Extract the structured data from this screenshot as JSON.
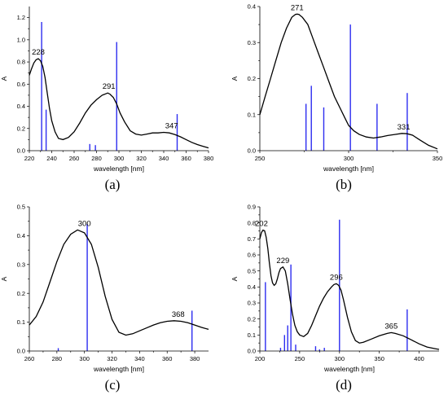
{
  "chart_data": [
    {
      "type": "line",
      "panel_label": "(a)",
      "xlabel": "wavelength [nm]",
      "ylabel": "A",
      "xlim": [
        220,
        380
      ],
      "ylim": [
        0,
        1.3
      ],
      "xticks": [
        220,
        240,
        260,
        280,
        300,
        320,
        340,
        360,
        380
      ],
      "yticks": [
        0.0,
        0.2,
        0.4,
        0.6,
        0.8,
        1.0,
        1.2
      ],
      "curve": {
        "x": [
          220,
          222,
          224,
          226,
          228,
          230,
          232,
          234,
          236,
          238,
          240,
          243,
          246,
          250,
          255,
          260,
          265,
          270,
          275,
          280,
          285,
          290,
          292,
          295,
          298,
          301,
          305,
          310,
          315,
          320,
          325,
          330,
          335,
          340,
          345,
          350,
          355,
          360,
          365,
          370,
          375,
          380
        ],
        "y": [
          0.68,
          0.74,
          0.79,
          0.82,
          0.83,
          0.81,
          0.76,
          0.66,
          0.52,
          0.38,
          0.27,
          0.17,
          0.11,
          0.1,
          0.12,
          0.17,
          0.25,
          0.34,
          0.41,
          0.46,
          0.5,
          0.52,
          0.51,
          0.48,
          0.42,
          0.34,
          0.26,
          0.18,
          0.15,
          0.14,
          0.15,
          0.16,
          0.16,
          0.165,
          0.16,
          0.145,
          0.125,
          0.1,
          0.075,
          0.055,
          0.04,
          0.025
        ]
      },
      "sticks": {
        "x": [
          231,
          235,
          274,
          279,
          298,
          352
        ],
        "y": [
          1.16,
          0.37,
          0.06,
          0.05,
          0.98,
          0.33
        ]
      },
      "peak_labels": [
        {
          "x": 228,
          "y": 0.83,
          "text": "228"
        },
        {
          "x": 291,
          "y": 0.52,
          "text": "291"
        },
        {
          "x": 347,
          "y": 0.165,
          "text": "347"
        }
      ]
    },
    {
      "type": "line",
      "panel_label": "(b)",
      "xlabel": "wavelength [nm]",
      "ylabel": "A",
      "xlim": [
        250,
        350
      ],
      "ylim": [
        0,
        0.4
      ],
      "xticks": [
        250,
        300,
        350
      ],
      "yticks": [
        0.0,
        0.1,
        0.2,
        0.3,
        0.4
      ],
      "curve": {
        "x": [
          250,
          253,
          256,
          259,
          262,
          265,
          268,
          270,
          271,
          272,
          274,
          277,
          280,
          283,
          286,
          289,
          292,
          295,
          298,
          300,
          303,
          306,
          310,
          314,
          318,
          322,
          326,
          330,
          333,
          336,
          340,
          345,
          350
        ],
        "y": [
          0.1,
          0.15,
          0.2,
          0.25,
          0.3,
          0.34,
          0.37,
          0.378,
          0.379,
          0.378,
          0.37,
          0.35,
          0.31,
          0.27,
          0.23,
          0.19,
          0.15,
          0.12,
          0.09,
          0.07,
          0.055,
          0.045,
          0.038,
          0.035,
          0.038,
          0.042,
          0.045,
          0.048,
          0.047,
          0.043,
          0.03,
          0.015,
          0.005
        ]
      },
      "sticks": {
        "x": [
          276,
          279,
          286,
          301,
          316,
          333
        ],
        "y": [
          0.13,
          0.18,
          0.12,
          0.35,
          0.13,
          0.16
        ]
      },
      "peak_labels": [
        {
          "x": 271,
          "y": 0.379,
          "text": "271"
        },
        {
          "x": 331,
          "y": 0.048,
          "text": "331"
        }
      ]
    },
    {
      "type": "line",
      "panel_label": "(c)",
      "xlabel": "wavelength [nm]",
      "ylabel": "A",
      "xlim": [
        260,
        390
      ],
      "ylim": [
        0,
        0.5
      ],
      "xticks": [
        260,
        280,
        300,
        320,
        340,
        360,
        380
      ],
      "yticks": [
        0.0,
        0.1,
        0.2,
        0.3,
        0.4,
        0.5
      ],
      "curve": {
        "x": [
          260,
          265,
          270,
          275,
          280,
          285,
          290,
          295,
          300,
          305,
          310,
          315,
          320,
          325,
          330,
          335,
          340,
          345,
          350,
          355,
          360,
          365,
          370,
          375,
          380,
          385,
          390
        ],
        "y": [
          0.09,
          0.12,
          0.17,
          0.24,
          0.31,
          0.37,
          0.405,
          0.42,
          0.41,
          0.37,
          0.29,
          0.19,
          0.11,
          0.065,
          0.055,
          0.06,
          0.07,
          0.08,
          0.09,
          0.098,
          0.103,
          0.105,
          0.103,
          0.098,
          0.09,
          0.082,
          0.075
        ]
      },
      "sticks": {
        "x": [
          281,
          302,
          378
        ],
        "y": [
          0.01,
          0.44,
          0.14
        ]
      },
      "peak_labels": [
        {
          "x": 300,
          "y": 0.42,
          "text": "300"
        },
        {
          "x": 368,
          "y": 0.105,
          "text": "368"
        }
      ]
    },
    {
      "type": "line",
      "panel_label": "(d)",
      "xlabel": "wavelength [nm]",
      "ylabel": "A",
      "xlim": [
        200,
        425
      ],
      "ylim": [
        0,
        0.9
      ],
      "xticks": [
        200,
        250,
        300,
        350,
        400
      ],
      "yticks": [
        0.0,
        0.1,
        0.2,
        0.3,
        0.4,
        0.5,
        0.6,
        0.7,
        0.8,
        0.9
      ],
      "curve": {
        "x": [
          200,
          202,
          204,
          206,
          208,
          210,
          212,
          214,
          216,
          218,
          220,
          222,
          224,
          226,
          229,
          232,
          235,
          238,
          241,
          244,
          247,
          250,
          255,
          260,
          265,
          270,
          275,
          280,
          285,
          290,
          293,
          296,
          299,
          302,
          305,
          310,
          315,
          320,
          325,
          330,
          340,
          350,
          360,
          365,
          370,
          380,
          390,
          400,
          410,
          420,
          425
        ],
        "y": [
          0.7,
          0.74,
          0.755,
          0.75,
          0.71,
          0.64,
          0.55,
          0.47,
          0.425,
          0.41,
          0.42,
          0.45,
          0.49,
          0.515,
          0.525,
          0.5,
          0.42,
          0.32,
          0.23,
          0.16,
          0.12,
          0.1,
          0.09,
          0.11,
          0.16,
          0.22,
          0.28,
          0.33,
          0.37,
          0.4,
          0.415,
          0.42,
          0.41,
          0.38,
          0.32,
          0.21,
          0.12,
          0.065,
          0.05,
          0.055,
          0.075,
          0.095,
          0.11,
          0.115,
          0.11,
          0.095,
          0.07,
          0.045,
          0.025,
          0.015,
          0.01
        ]
      },
      "sticks": {
        "x": [
          207,
          226,
          231,
          235,
          239,
          245,
          270,
          275,
          281,
          300,
          385
        ],
        "y": [
          0.43,
          0.02,
          0.1,
          0.16,
          0.54,
          0.04,
          0.03,
          0.01,
          0.02,
          0.82,
          0.26
        ]
      },
      "peak_labels": [
        {
          "x": 202,
          "y": 0.755,
          "text": "202"
        },
        {
          "x": 229,
          "y": 0.525,
          "text": "229"
        },
        {
          "x": 296,
          "y": 0.42,
          "text": "296"
        },
        {
          "x": 365,
          "y": 0.115,
          "text": "365"
        }
      ]
    }
  ]
}
